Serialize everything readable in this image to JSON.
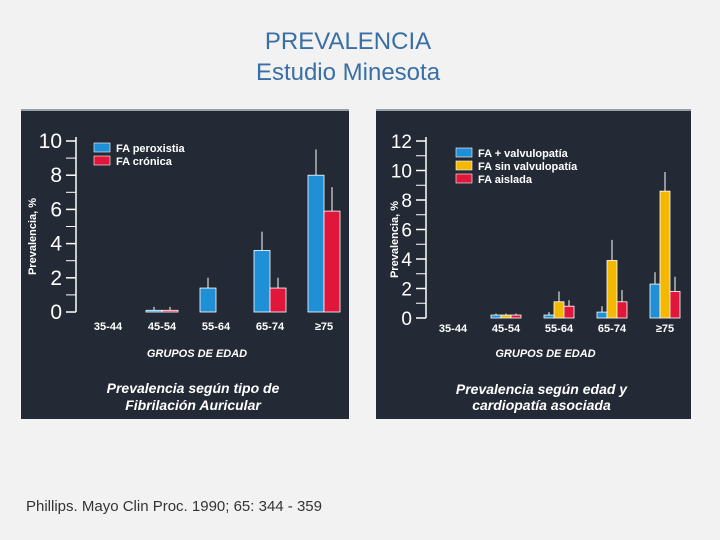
{
  "slide": {
    "title_line1": "PREVALENCIA",
    "title_line2": "Estudio Minesota",
    "citation": "Phillips. Mayo Clin Proc. 1990; 65: 344 - 359"
  },
  "colors": {
    "panel_bg": "#242a35",
    "text": "#ffffff",
    "blue": "#1f8fd6",
    "red": "#e0163a",
    "yellow": "#f5b800"
  },
  "chart_data": [
    {
      "type": "bar",
      "ylabel": "Prevalencia, %",
      "xlabel": "GRUPOS DE EDAD",
      "caption_line1": "Prevalencia según tipo de",
      "caption_line2": "Fibrilación Auricular",
      "ylim": [
        0,
        10
      ],
      "yticks": [
        "0",
        "2",
        "4",
        "6",
        "8",
        "10"
      ],
      "categories": [
        "35-44",
        "45-54",
        "55-64",
        "65-74",
        "≥75"
      ],
      "series": [
        {
          "name": "FA peroxistia",
          "color": "#1f8fd6",
          "values": [
            0,
            0.1,
            1.4,
            3.6,
            8.0
          ],
          "errors": [
            0,
            0.2,
            0.6,
            1.1,
            1.5
          ]
        },
        {
          "name": "FA crónica",
          "color": "#e0163a",
          "values": [
            0,
            0.1,
            null,
            1.4,
            5.9
          ],
          "errors": [
            0,
            0.2,
            0,
            0.6,
            1.4
          ]
        }
      ]
    },
    {
      "type": "bar",
      "ylabel": "Prevalencia, %",
      "xlabel": "GRUPOS DE EDAD",
      "caption_line1": "Prevalencia según edad y",
      "caption_line2": "cardiopatía asociada",
      "ylim": [
        0,
        12
      ],
      "yticks": [
        "0",
        "2",
        "4",
        "6",
        "8",
        "10",
        "12"
      ],
      "categories": [
        "35-44",
        "45-54",
        "55-64",
        "65-74",
        "≥75"
      ],
      "series": [
        {
          "name": "FA + valvulopatía",
          "color": "#1f8fd6",
          "values": [
            0,
            0.2,
            0.2,
            0.4,
            2.3
          ],
          "errors": [
            0,
            0.1,
            0.2,
            0.4,
            0.8
          ]
        },
        {
          "name": "FA sin valvulopatía",
          "color": "#f5b800",
          "values": [
            0,
            0.2,
            1.1,
            3.9,
            8.6
          ],
          "errors": [
            0,
            0.1,
            0.7,
            1.4,
            1.3
          ]
        },
        {
          "name": "FA aislada",
          "color": "#e0163a",
          "values": [
            0,
            0.2,
            0.8,
            1.1,
            1.8
          ],
          "errors": [
            0,
            0.1,
            0.4,
            0.8,
            1.0
          ]
        }
      ]
    }
  ]
}
